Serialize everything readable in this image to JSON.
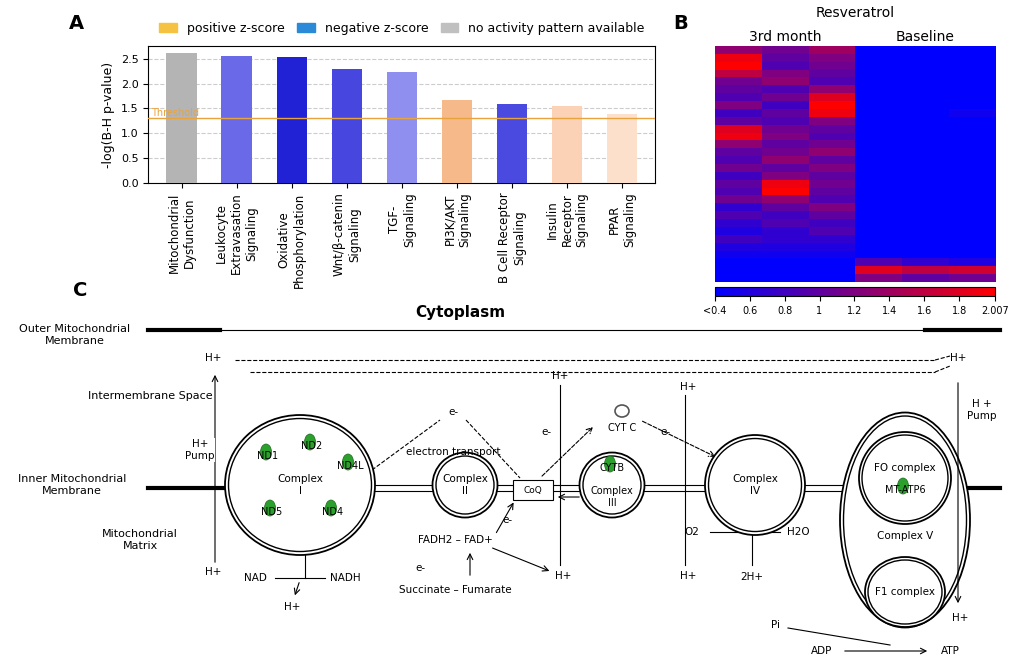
{
  "chart_data": [
    {
      "type": "bar",
      "panel": "A",
      "categories": [
        "Mitochondrial\nDysfunction",
        "Leukocyte\nExtravasation\nSignaling",
        "Oxidative\nPhosphorylation",
        "Wnt/β-catenin\nSignaling",
        "TGF-\nSignaling",
        "PI3K/AKT\nSignaling",
        "B Cell Receptor\nSignaling",
        "Insulin\nReceptor\nSignaling",
        "PPAR\nSignaling"
      ],
      "values": [
        2.62,
        2.55,
        2.54,
        2.3,
        2.24,
        1.66,
        1.58,
        1.55,
        1.39
      ],
      "colors": [
        "#b4b4b4",
        "#6a6ae8",
        "#2121d6",
        "#4747e0",
        "#8f8fef",
        "#f5b98a",
        "#4a4ae0",
        "#fbd2b6",
        "#fde0cc"
      ],
      "ylabel": "-log(B-H p-value)",
      "ylim": [
        0,
        2.75
      ],
      "yticks": [
        {
          "value": 0,
          "label": "0.0"
        },
        0.5,
        {
          "value": 1,
          "label": "1.0"
        },
        1.5,
        {
          "value": 2,
          "label": "2.0"
        },
        2.5
      ],
      "grid": true,
      "threshold": {
        "value": 1.3,
        "label": "Threshold",
        "color": "#e8a33d"
      },
      "legend": "lower center",
      "legend_entries": [
        {
          "name": "positive z-score",
          "color": "#f5c242"
        },
        {
          "name": "negative z-score",
          "color": "#2b8ad8"
        },
        {
          "name": "no activity pattern available",
          "color": "#c0c0c0"
        }
      ]
    },
    {
      "type": "heatmap",
      "panel": "B",
      "title": "Resveratrol",
      "groups": [
        {
          "label": "3rd month",
          "columns": 3
        },
        {
          "label": "Baseline",
          "columns": 3
        }
      ],
      "tick_labels": false,
      "cells": [
        [
          1.3,
          1.1,
          1.4,
          0.4,
          0.4,
          0.4
        ],
        [
          1.9,
          1.0,
          1.2,
          0.4,
          0.4,
          0.4
        ],
        [
          2.0,
          0.9,
          1.1,
          0.4,
          0.4,
          0.4
        ],
        [
          1.6,
          1.2,
          1.0,
          0.4,
          0.4,
          0.4
        ],
        [
          1.1,
          1.3,
          0.9,
          0.4,
          0.4,
          0.4
        ],
        [
          1.0,
          0.9,
          1.3,
          0.4,
          0.4,
          0.4
        ],
        [
          0.9,
          1.1,
          1.8,
          0.4,
          0.4,
          0.4
        ],
        [
          1.2,
          0.8,
          2.0,
          0.4,
          0.4,
          0.4
        ],
        [
          0.8,
          1.0,
          1.9,
          0.4,
          0.4,
          0.5
        ],
        [
          1.0,
          0.9,
          1.2,
          0.4,
          0.4,
          0.4
        ],
        [
          1.8,
          1.1,
          1.0,
          0.4,
          0.4,
          0.4
        ],
        [
          1.9,
          1.2,
          0.9,
          0.4,
          0.4,
          0.4
        ],
        [
          1.3,
          1.0,
          1.1,
          0.4,
          0.4,
          0.4
        ],
        [
          1.0,
          1.1,
          1.3,
          0.4,
          0.4,
          0.4
        ],
        [
          0.9,
          1.3,
          1.0,
          0.4,
          0.4,
          0.4
        ],
        [
          1.1,
          1.0,
          1.2,
          0.4,
          0.4,
          0.4
        ],
        [
          0.8,
          1.2,
          1.0,
          0.4,
          0.4,
          0.4
        ],
        [
          1.0,
          1.9,
          1.1,
          0.4,
          0.4,
          0.4
        ],
        [
          0.9,
          2.0,
          1.0,
          0.4,
          0.4,
          0.4
        ],
        [
          1.1,
          1.3,
          0.9,
          0.4,
          0.4,
          0.4
        ],
        [
          0.7,
          1.0,
          1.2,
          0.4,
          0.4,
          0.4
        ],
        [
          0.9,
          0.8,
          1.0,
          0.4,
          0.4,
          0.4
        ],
        [
          0.7,
          0.9,
          0.8,
          0.4,
          0.4,
          0.4
        ],
        [
          0.6,
          0.7,
          0.9,
          0.4,
          0.4,
          0.4
        ],
        [
          0.8,
          0.7,
          0.7,
          0.4,
          0.4,
          0.4
        ],
        [
          0.6,
          0.6,
          0.6,
          0.4,
          0.4,
          0.4
        ],
        [
          0.5,
          0.5,
          0.5,
          0.4,
          0.4,
          0.4
        ],
        [
          0.4,
          0.4,
          0.4,
          0.9,
          0.7,
          0.6
        ],
        [
          0.4,
          0.4,
          0.4,
          1.8,
          1.6,
          1.7
        ],
        [
          0.4,
          0.4,
          0.4,
          1.2,
          1.0,
          1.1
        ]
      ],
      "colorbar": {
        "range": [
          0.4,
          2.007
        ],
        "colors": [
          "#0000ff",
          "#ff0000"
        ],
        "ticks": [
          {
            "value": 0.4,
            "label": "<0.4"
          },
          0.6,
          0.8,
          1,
          1.2,
          1.4,
          1.6,
          1.8,
          2.007
        ]
      }
    }
  ],
  "diagram": {
    "panel": "C",
    "title": "Cytoplasm",
    "regions": [
      "Outer Mitochondrial\nMembrane",
      "Intermembrane Space",
      "Inner Mitochondrial\nMembrane",
      "Mitochondrial\nMatrix"
    ],
    "proton": "H+",
    "electron": "e-",
    "pump_left": "H+\nPump",
    "pump_right": "H +\nPump",
    "complex_I": {
      "label": "Complex\nI",
      "genes": [
        "ND1",
        "ND2",
        "ND4L",
        "ND5",
        "ND4"
      ]
    },
    "electron_transport": "electron transport",
    "complex_II": {
      "label": "Complex\nII"
    },
    "coq": "CoQ",
    "fad": "FADH2 – FAD+",
    "succinate": "Succinate – Fumarate",
    "complex_III": {
      "label": "Complex\nIII",
      "genes": [
        "CYTB"
      ]
    },
    "cytc": "CYT C",
    "complex_IV": {
      "label": "Complex\nIV"
    },
    "o2": "O2",
    "h2o": "H2O",
    "two_h": "2H+",
    "complex_V": {
      "label": "Complex V",
      "fo": "FO complex",
      "genes": [
        "MT-ATP6"
      ],
      "f1": "F1 complex"
    },
    "nad": "NAD",
    "nadh": "NADH",
    "pi": "Pi",
    "adp": "ADP",
    "atp": "ATP"
  }
}
